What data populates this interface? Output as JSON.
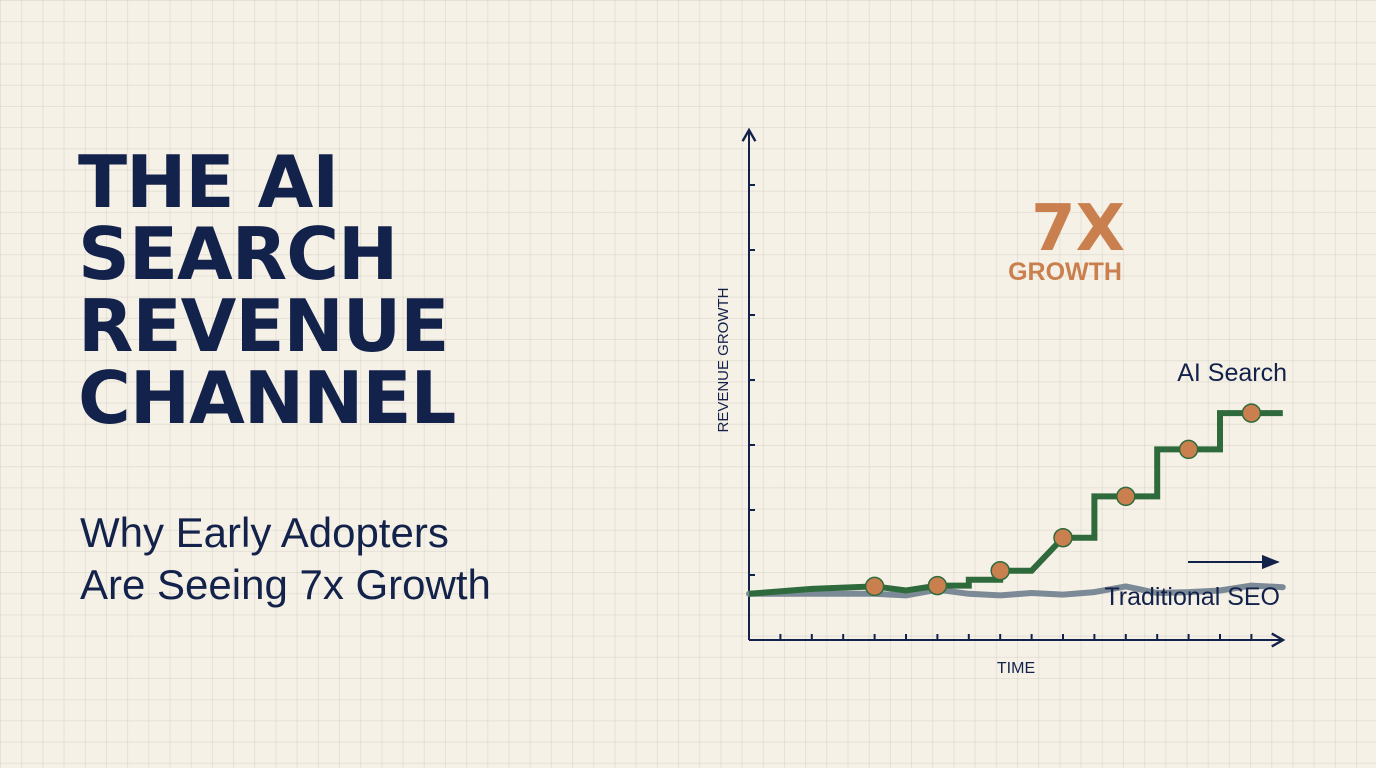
{
  "headline": {
    "lines": [
      "THE AI",
      "SEARCH",
      "REVENUE",
      "CHANNEL"
    ]
  },
  "subheadline": {
    "lines": [
      "Why Early Adopters",
      "Are Seeing 7x Growth"
    ]
  },
  "colors": {
    "background": "#f6f1e7",
    "navy": "#13224a",
    "ai_search": "#2f6a3c",
    "traditional_seo": "#7c8996",
    "accent": "#c9804e"
  },
  "chart_data": {
    "type": "line",
    "title": "",
    "xlabel": "TIME",
    "ylabel": "REVENUE GROWTH",
    "x_ticks": 16,
    "y_ticks": 7,
    "grid": true,
    "annotation": {
      "value": "7X",
      "label": "GROWTH"
    },
    "series": [
      {
        "name": "AI Search",
        "style": "step",
        "color": "#2f6a3c",
        "points": [
          [
            0,
            1.0
          ],
          [
            2,
            1.3
          ],
          [
            4,
            1.45
          ],
          [
            5,
            1.2
          ],
          [
            6,
            1.5
          ],
          [
            7,
            1.5
          ],
          [
            7,
            1.85
          ],
          [
            8,
            1.85
          ],
          [
            8,
            2.4
          ],
          [
            9,
            2.4
          ],
          [
            10,
            4.4
          ],
          [
            11,
            4.4
          ],
          [
            11,
            6.9
          ],
          [
            12,
            6.9
          ],
          [
            13,
            6.9
          ],
          [
            13,
            9.75
          ],
          [
            14,
            9.75
          ],
          [
            15,
            9.75
          ],
          [
            15,
            11.95
          ],
          [
            17,
            11.95
          ]
        ],
        "markers": [
          [
            4,
            1.45
          ],
          [
            6,
            1.5
          ],
          [
            8,
            2.4
          ],
          [
            10,
            4.4
          ],
          [
            12,
            6.9
          ],
          [
            14,
            9.75
          ],
          [
            16,
            11.95
          ]
        ]
      },
      {
        "name": "Traditional SEO",
        "style": "line",
        "color": "#7c8996",
        "points": [
          [
            0,
            1.0
          ],
          [
            4,
            1.0
          ],
          [
            5,
            0.9
          ],
          [
            6,
            1.25
          ],
          [
            7,
            1.0
          ],
          [
            8,
            0.9
          ],
          [
            9,
            1.05
          ],
          [
            10,
            0.95
          ],
          [
            11,
            1.1
          ],
          [
            12,
            1.45
          ],
          [
            13,
            1.05
          ],
          [
            14,
            1.1
          ],
          [
            15,
            1.2
          ],
          [
            16,
            1.5
          ],
          [
            17,
            1.4
          ]
        ]
      }
    ]
  }
}
